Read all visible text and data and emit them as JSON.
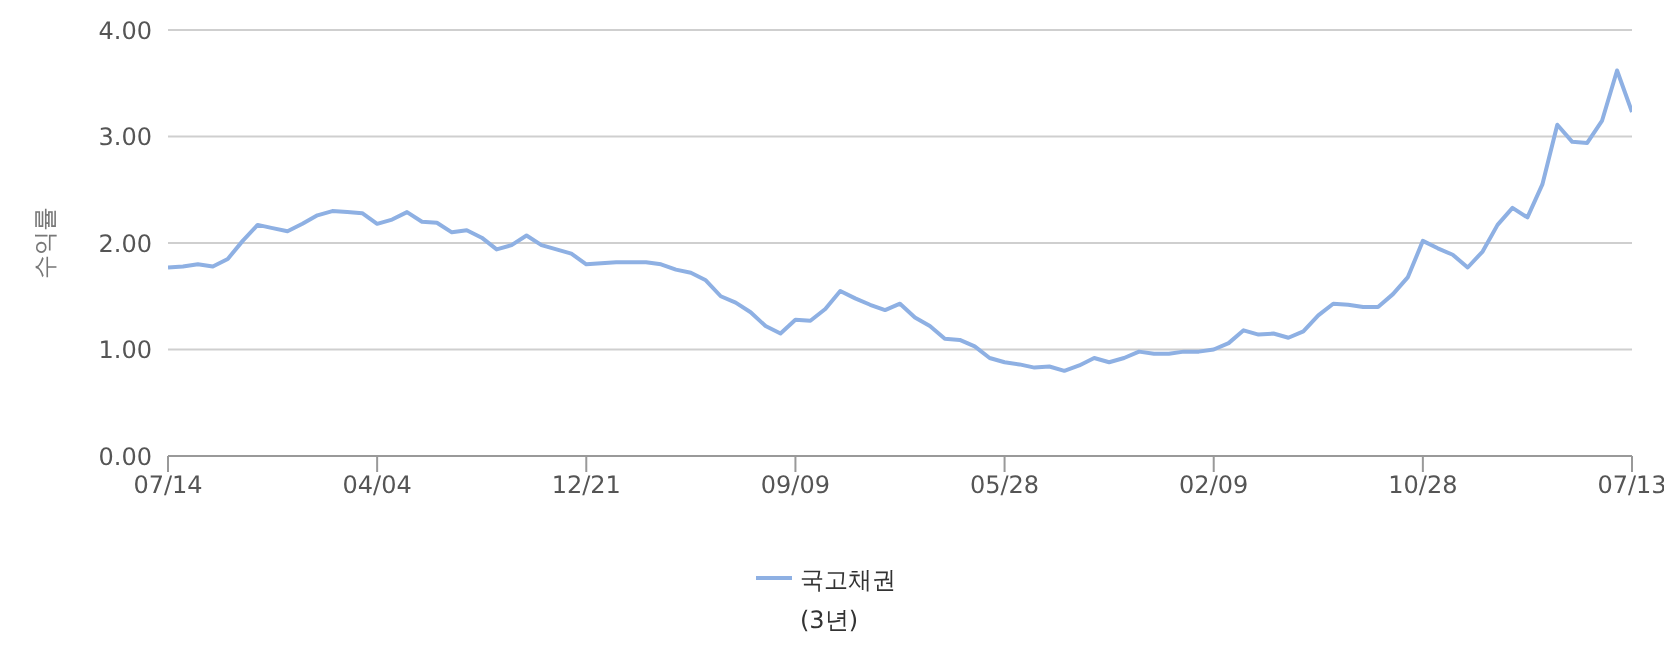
{
  "chart_data": {
    "type": "line",
    "ylabel": "수익률",
    "legend": "bottom",
    "grid": "y",
    "marker": "none",
    "line_style": "solid",
    "categories": [
      "07/14",
      null,
      null,
      null,
      null,
      null,
      null,
      null,
      null,
      null,
      null,
      null,
      null,
      null,
      "04/04",
      null,
      null,
      null,
      null,
      null,
      null,
      null,
      null,
      null,
      null,
      null,
      null,
      null,
      "12/21",
      null,
      null,
      null,
      null,
      null,
      null,
      null,
      null,
      null,
      null,
      null,
      null,
      null,
      "09/09",
      null,
      null,
      null,
      null,
      null,
      null,
      null,
      null,
      null,
      null,
      null,
      null,
      null,
      "05/28",
      null,
      null,
      null,
      null,
      null,
      null,
      null,
      null,
      null,
      null,
      null,
      null,
      null,
      "02/09",
      null,
      null,
      null,
      null,
      null,
      null,
      null,
      null,
      null,
      null,
      null,
      null,
      null,
      "10/28",
      null,
      null,
      null,
      null,
      null,
      null,
      null,
      null,
      null,
      null,
      null,
      null,
      null,
      "07/13"
    ],
    "ylim": [
      0,
      4
    ],
    "yticks": [
      {
        "value": 0,
        "label": "0.00"
      },
      {
        "value": 1,
        "label": "1.00"
      },
      {
        "value": 2,
        "label": "2.00"
      },
      {
        "value": 3,
        "label": "3.00"
      },
      {
        "value": 4,
        "label": "4.00"
      }
    ],
    "series": [
      {
        "name": "국고채권 (3년)",
        "color": "#8eb0e3",
        "values": [
          1.77,
          1.78,
          1.8,
          1.78,
          1.85,
          2.02,
          2.17,
          2.14,
          2.11,
          2.18,
          2.26,
          2.3,
          2.29,
          2.28,
          2.18,
          2.22,
          2.29,
          2.2,
          2.19,
          2.1,
          2.12,
          2.05,
          1.94,
          1.98,
          2.07,
          1.98,
          1.94,
          1.9,
          1.8,
          1.81,
          1.82,
          1.82,
          1.82,
          1.8,
          1.75,
          1.72,
          1.65,
          1.5,
          1.44,
          1.35,
          1.22,
          1.15,
          1.28,
          1.27,
          1.38,
          1.55,
          1.48,
          1.42,
          1.37,
          1.43,
          1.3,
          1.22,
          1.1,
          1.09,
          1.03,
          0.92,
          0.88,
          0.86,
          0.83,
          0.84,
          0.8,
          0.85,
          0.92,
          0.88,
          0.92,
          0.98,
          0.96,
          0.96,
          0.98,
          0.98,
          1.0,
          1.06,
          1.18,
          1.14,
          1.15,
          1.11,
          1.17,
          1.32,
          1.43,
          1.42,
          1.4,
          1.4,
          1.52,
          1.68,
          2.02,
          1.95,
          1.89,
          1.77,
          1.92,
          2.17,
          2.33,
          2.24,
          2.55,
          3.11,
          2.95,
          2.94,
          3.15,
          3.62,
          3.23
        ]
      }
    ]
  }
}
